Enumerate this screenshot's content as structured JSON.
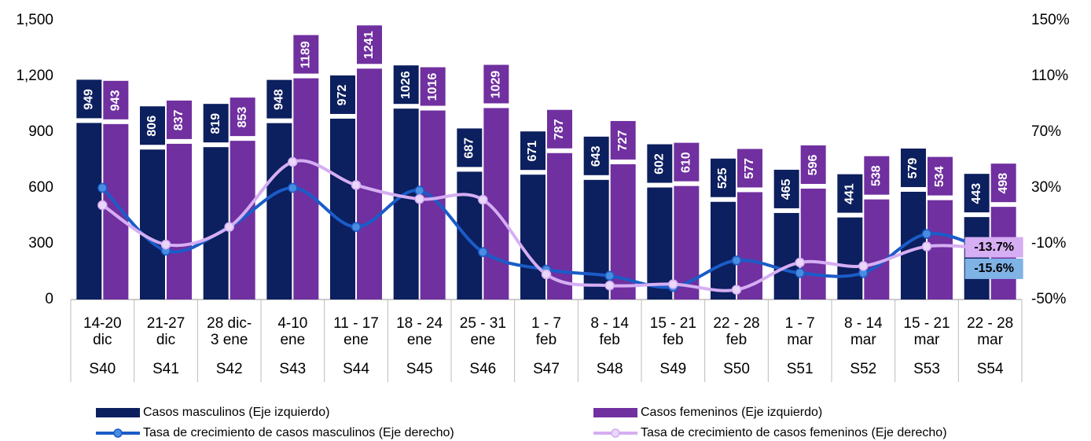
{
  "chart_data": {
    "type": "bar",
    "categories": [
      [
        "14-20",
        "dic"
      ],
      [
        "21-27",
        "dic"
      ],
      [
        "28 dic-",
        "3 ene"
      ],
      [
        "4-10",
        "ene"
      ],
      [
        "11 - 17",
        "ene"
      ],
      [
        "18 - 24",
        "ene"
      ],
      [
        "25 - 31",
        "ene"
      ],
      [
        "1 - 7",
        "feb"
      ],
      [
        "8 - 14",
        "feb"
      ],
      [
        "15 - 21",
        "feb"
      ],
      [
        "22 - 28",
        "feb"
      ],
      [
        "1 - 7",
        "mar"
      ],
      [
        "8 - 14",
        "mar"
      ],
      [
        "15 - 21",
        "mar"
      ],
      [
        "22 - 28",
        "mar"
      ]
    ],
    "weeks": [
      "S40",
      "S41",
      "S42",
      "S43",
      "S44",
      "S45",
      "S46",
      "S47",
      "S48",
      "S49",
      "S50",
      "S51",
      "S52",
      "S53",
      "S54"
    ],
    "series": [
      {
        "name": "Casos masculinos (Eje izquierdo)",
        "type": "bar",
        "axis": "y",
        "color": "#0c1f5e",
        "values": [
          949,
          806,
          819,
          948,
          972,
          1026,
          687,
          671,
          643,
          602,
          525,
          465,
          441,
          579,
          443
        ]
      },
      {
        "name": "Casos femeninos (Eje izquierdo)",
        "type": "bar",
        "axis": "y",
        "color": "#7030a0",
        "values": [
          943,
          837,
          853,
          1189,
          1241,
          1016,
          1029,
          787,
          727,
          610,
          577,
          596,
          538,
          534,
          498
        ]
      },
      {
        "name": "Tasa de crecimiento de casos masculinos (Eje derecho)",
        "type": "line",
        "axis": "y2",
        "color": "#1a5cc8",
        "marker_fill": "#4a8de0",
        "label_bg": "#7fb2e5",
        "values": [
          30,
          -15,
          2,
          30,
          2,
          28,
          -16,
          -28.6,
          -33,
          -41,
          -22,
          -31,
          -31,
          -3,
          -15.6
        ],
        "value_labels": [
          null,
          null,
          null,
          null,
          null,
          null,
          null,
          null,
          null,
          null,
          null,
          null,
          null,
          null,
          "-15.6%"
        ]
      },
      {
        "name": "Tasa de crecimiento de casos femeninos (Eje derecho)",
        "type": "line",
        "axis": "y2",
        "color": "#d5aef3",
        "marker_fill": "#e9d6f8",
        "label_bg": "#d5aef3",
        "values": [
          17.6,
          -10.6,
          2,
          48.6,
          32,
          22,
          21.5,
          -32,
          -40,
          -39,
          -43,
          -23.5,
          -26,
          -12,
          -13.7
        ],
        "value_labels": [
          null,
          null,
          null,
          null,
          null,
          null,
          null,
          null,
          null,
          null,
          null,
          null,
          null,
          null,
          "-13.7%"
        ]
      }
    ],
    "ylim": [
      0,
      1500
    ],
    "yticks": [
      0,
      300,
      600,
      900,
      {
        "value": 1200,
        "label": "1,200"
      },
      {
        "value": 1500,
        "label": "1,500"
      }
    ],
    "y2lim": [
      -50,
      150
    ],
    "y2ticks": [
      {
        "value": -50,
        "label": "-50%"
      },
      {
        "value": -10,
        "label": "-10%"
      },
      {
        "value": 30,
        "label": "30%"
      },
      {
        "value": 70,
        "label": "70%"
      },
      {
        "value": 110,
        "label": "110%"
      },
      {
        "value": 150,
        "label": "150%"
      }
    ],
    "grid": false
  }
}
